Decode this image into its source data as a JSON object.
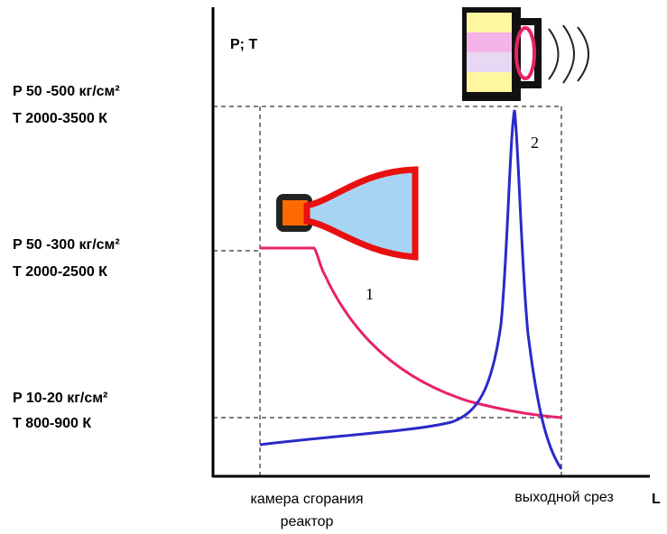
{
  "axis_label": "P; T",
  "levels": [
    {
      "pressure": "P  50 -500 кг/см²",
      "temperature": "T  2000-3500 К"
    },
    {
      "pressure": "P  50 -300 кг/см²",
      "temperature": "T  2000-2500 К"
    },
    {
      "pressure": "P 10-20    кг/см²",
      "temperature": "T 800-900 К"
    }
  ],
  "curves": [
    {
      "label": "1"
    },
    {
      "label": "2"
    }
  ],
  "x_labels": {
    "chamber": "камера сгорания",
    "reactor": "реактор",
    "exit": "выходной срез",
    "axis": "L"
  }
}
